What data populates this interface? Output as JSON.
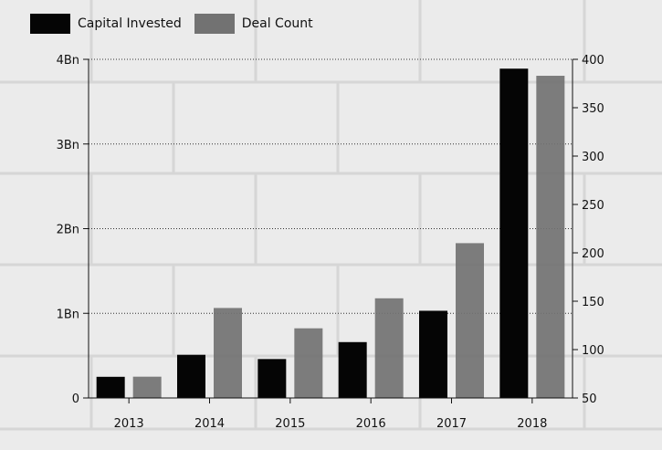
{
  "chart_data": {
    "type": "bar",
    "categories": [
      "2013",
      "2014",
      "2015",
      "2016",
      "2017",
      "2018"
    ],
    "series": [
      {
        "name": "Capital Invested",
        "axis": "left",
        "color": "#050505",
        "values": [
          0.25,
          0.51,
          0.46,
          0.66,
          1.03,
          3.89
        ]
      },
      {
        "name": "Deal Count",
        "axis": "right",
        "color": "#727272",
        "values": [
          72,
          143,
          122,
          153,
          210,
          383
        ]
      }
    ],
    "y_left": {
      "min": 0,
      "max": 4,
      "ticks": [
        {
          "value": 0,
          "label": "0"
        },
        {
          "value": 1,
          "label": "1Bn"
        },
        {
          "value": 2,
          "label": "2Bn"
        },
        {
          "value": 3,
          "label": "3Bn"
        },
        {
          "value": 4,
          "label": "4Bn"
        }
      ]
    },
    "y_right": {
      "min": 50,
      "max": 400,
      "ticks": [
        {
          "value": 50,
          "label": "50"
        },
        {
          "value": 100,
          "label": "100"
        },
        {
          "value": 150,
          "label": "150"
        },
        {
          "value": 200,
          "label": "200"
        },
        {
          "value": 250,
          "label": "250"
        },
        {
          "value": 300,
          "label": "300"
        },
        {
          "value": 350,
          "label": "350"
        },
        {
          "value": 400,
          "label": "400"
        }
      ]
    },
    "grid": "horizontal dotted",
    "legend_position": "top-left"
  }
}
